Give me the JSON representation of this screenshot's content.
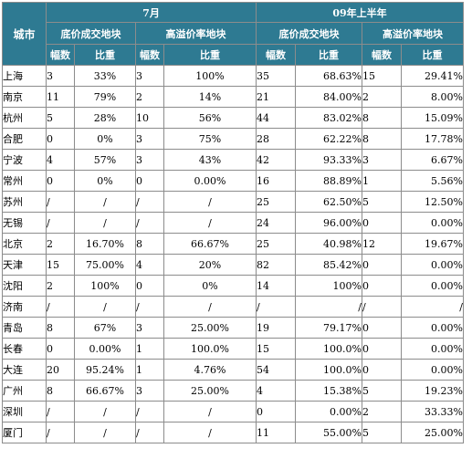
{
  "header": {
    "city": "城市",
    "july": "7月",
    "h1": "09年上半年",
    "floor": "底价成交地块",
    "premium": "高溢价率地块",
    "count": "幅数",
    "ratio": "比重"
  },
  "rows": [
    {
      "city": "上海",
      "c1": "3",
      "p1": "33%",
      "c2": "3",
      "p2": "100%",
      "c3": "35",
      "p3": "68.63%",
      "c4": "15",
      "p4": "29.41%"
    },
    {
      "city": "南京",
      "c1": "11",
      "p1": "79%",
      "c2": "2",
      "p2": "14%",
      "c3": "21",
      "p3": "84.00%",
      "c4": "2",
      "p4": "8.00%"
    },
    {
      "city": "杭州",
      "c1": "5",
      "p1": "28%",
      "c2": "10",
      "p2": "56%",
      "c3": "44",
      "p3": "83.02%",
      "c4": "8",
      "p4": "15.09%"
    },
    {
      "city": "合肥",
      "c1": "0",
      "p1": "0%",
      "c2": "3",
      "p2": "75%",
      "c3": "28",
      "p3": "62.22%",
      "c4": "8",
      "p4": "17.78%"
    },
    {
      "city": "宁波",
      "c1": "4",
      "p1": "57%",
      "c2": "3",
      "p2": "43%",
      "c3": "42",
      "p3": "93.33%",
      "c4": "3",
      "p4": "6.67%"
    },
    {
      "city": "常州",
      "c1": "0",
      "p1": "0%",
      "c2": "0",
      "p2": "0.00%",
      "c3": "16",
      "p3": "88.89%",
      "c4": "1",
      "p4": "5.56%"
    },
    {
      "city": "苏州",
      "c1": "/",
      "p1": "/",
      "c2": "/",
      "p2": "/",
      "c3": "25",
      "p3": "62.50%",
      "c4": "5",
      "p4": "12.50%"
    },
    {
      "city": "无锡",
      "c1": "/",
      "p1": "/",
      "c2": "/",
      "p2": "/",
      "c3": "24",
      "p3": "96.00%",
      "c4": "0",
      "p4": "0.00%"
    },
    {
      "city": "北京",
      "c1": "2",
      "p1": "16.70%",
      "c2": "8",
      "p2": "66.67%",
      "c3": "25",
      "p3": "40.98%",
      "c4": "12",
      "p4": "19.67%"
    },
    {
      "city": "天津",
      "c1": "15",
      "p1": "75.00%",
      "c2": "4",
      "p2": "20%",
      "c3": "82",
      "p3": "85.42%",
      "c4": "0",
      "p4": "0.00%"
    },
    {
      "city": "沈阳",
      "c1": "2",
      "p1": "100%",
      "c2": "0",
      "p2": "0%",
      "c3": "14",
      "p3": "100%",
      "c4": "0",
      "p4": "0.00%"
    },
    {
      "city": "济南",
      "c1": "/",
      "p1": "/",
      "c2": "/",
      "p2": "/",
      "c3": "/",
      "p3": "/",
      "c4": "/",
      "p4": "/"
    },
    {
      "city": "青岛",
      "c1": "8",
      "p1": "67%",
      "c2": "3",
      "p2": "25.00%",
      "c3": "19",
      "p3": "79.17%",
      "c4": "0",
      "p4": "0.00%"
    },
    {
      "city": "长春",
      "c1": "0",
      "p1": "0.00%",
      "c2": "1",
      "p2": "100.0%",
      "c3": "15",
      "p3": "100.0%",
      "c4": "0",
      "p4": "0.00%"
    },
    {
      "city": "大连",
      "c1": "20",
      "p1": "95.24%",
      "c2": "1",
      "p2": "4.76%",
      "c3": "54",
      "p3": "100.0%",
      "c4": "0",
      "p4": "0.00%"
    },
    {
      "city": "广州",
      "c1": "8",
      "p1": "66.67%",
      "c2": "3",
      "p2": "25.00%",
      "c3": "4",
      "p3": "15.38%",
      "c4": "5",
      "p4": "19.23%"
    },
    {
      "city": "深圳",
      "c1": "/",
      "p1": "/",
      "c2": "/",
      "p2": "/",
      "c3": "0",
      "p3": "0.00%",
      "c4": "2",
      "p4": "33.33%"
    },
    {
      "city": "厦门",
      "c1": "/",
      "p1": "/",
      "c2": "/",
      "p2": "/",
      "c3": "11",
      "p3": "55.00%",
      "c4": "5",
      "p4": "25.00%"
    }
  ]
}
